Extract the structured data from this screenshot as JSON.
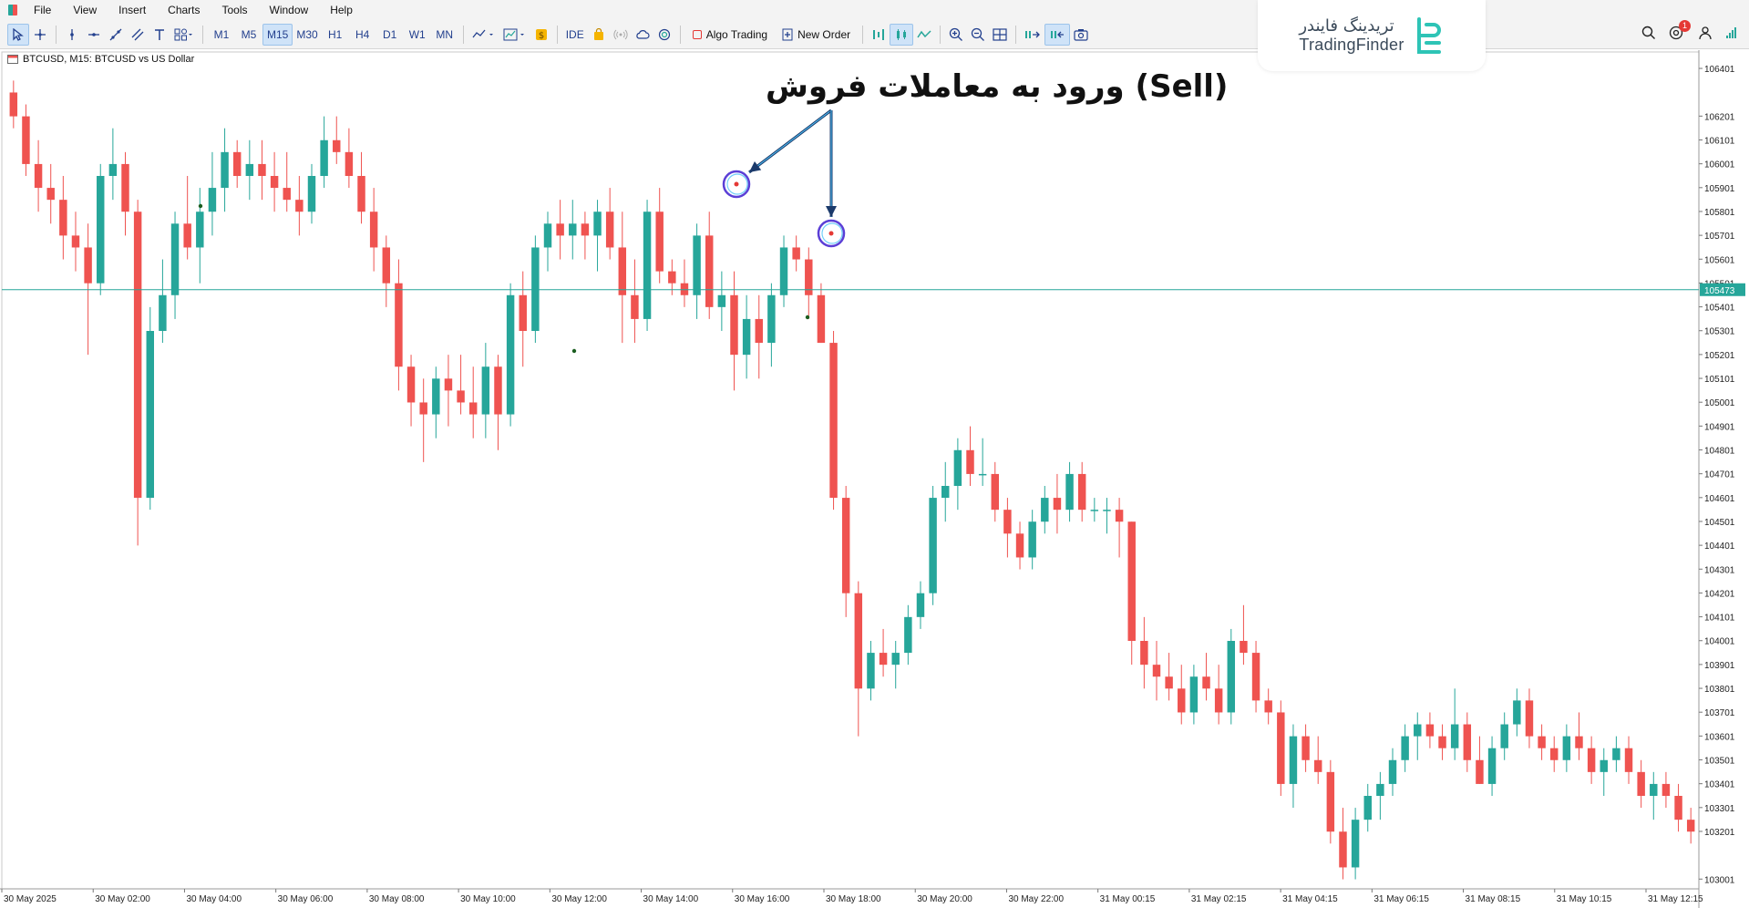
{
  "menu": [
    "File",
    "View",
    "Insert",
    "Charts",
    "Tools",
    "Window",
    "Help"
  ],
  "toolbar": {
    "timeframes": [
      "M1",
      "M5",
      "M15",
      "M30",
      "H1",
      "H4",
      "D1",
      "W1",
      "MN"
    ],
    "active_timeframe": "M15",
    "ide_label": "IDE",
    "algo_trading_label": "Algo Trading",
    "new_order_label": "New Order"
  },
  "notifications": {
    "count": "1"
  },
  "logo": {
    "fa": "تریدینگ فایندر",
    "en": "TradingFinder"
  },
  "chart": {
    "title": "BTCUSD, M15:  BTCUSD vs US Dollar",
    "annotation": "ورود به معاملات فروش (Sell)",
    "current_price_label": "105473",
    "price_ticks": [
      "106401",
      "106201",
      "106101",
      "106001",
      "105901",
      "105801",
      "105701",
      "105601",
      "105501",
      "105401",
      "105301",
      "105201",
      "105101",
      "105001",
      "104901",
      "104801",
      "104701",
      "104601",
      "104501",
      "104401",
      "104301",
      "104201",
      "104101",
      "104001",
      "103901",
      "103801",
      "103701",
      "103601",
      "103501",
      "103401",
      "103301",
      "103201",
      "103001"
    ],
    "time_ticks": [
      "30 May 2025",
      "30 May 02:00",
      "30 May 04:00",
      "30 May 06:00",
      "30 May 08:00",
      "30 May 10:00",
      "30 May 12:00",
      "30 May 14:00",
      "30 May 16:00",
      "30 May 18:00",
      "30 May 20:00",
      "30 May 22:00",
      "31 May 00:15",
      "31 May 02:15",
      "31 May 04:15",
      "31 May 06:15",
      "31 May 08:15",
      "31 May 10:15",
      "31 May 12:15"
    ],
    "colors": {
      "bull": "#26a69a",
      "bear": "#ef5350",
      "current_line": "#26a69a",
      "signal": "#e53935",
      "circle": "#5b3fd6"
    }
  },
  "chart_data": {
    "type": "candlestick",
    "symbol": "BTCUSD",
    "timeframe": "M15",
    "ylim": [
      102960,
      106470
    ],
    "current_price": 105473,
    "candles": [
      [
        106300,
        106350,
        106150,
        106200
      ],
      [
        106200,
        106250,
        105950,
        106000
      ],
      [
        106000,
        106100,
        105800,
        105900
      ],
      [
        105900,
        106000,
        105750,
        105850
      ],
      [
        105850,
        105950,
        105600,
        105700
      ],
      [
        105700,
        105800,
        105550,
        105650
      ],
      [
        105650,
        105750,
        105200,
        105500
      ],
      [
        105500,
        106000,
        105450,
        105950
      ],
      [
        105950,
        106150,
        105850,
        106000
      ],
      [
        106000,
        106050,
        105700,
        105800
      ],
      [
        105800,
        105850,
        104400,
        104600
      ],
      [
        104600,
        105400,
        104550,
        105300
      ],
      [
        105300,
        105600,
        105250,
        105450
      ],
      [
        105450,
        105800,
        105350,
        105750
      ],
      [
        105750,
        105950,
        105600,
        105650
      ],
      [
        105650,
        105900,
        105500,
        105800
      ],
      [
        105800,
        106050,
        105700,
        105900
      ],
      [
        105900,
        106150,
        105800,
        106050
      ],
      [
        106050,
        106100,
        105900,
        105950
      ],
      [
        105950,
        106100,
        105850,
        106000
      ],
      [
        106000,
        106100,
        105850,
        105950
      ],
      [
        105950,
        106050,
        105800,
        105900
      ],
      [
        105900,
        106050,
        105800,
        105850
      ],
      [
        105850,
        105950,
        105700,
        105800
      ],
      [
        105800,
        106000,
        105750,
        105950
      ],
      [
        105950,
        106200,
        105900,
        106100
      ],
      [
        106100,
        106200,
        106000,
        106050
      ],
      [
        106050,
        106150,
        105900,
        105950
      ],
      [
        105950,
        106050,
        105750,
        105800
      ],
      [
        105800,
        105900,
        105550,
        105650
      ],
      [
        105650,
        105700,
        105400,
        105500
      ],
      [
        105500,
        105600,
        105050,
        105150
      ],
      [
        105150,
        105200,
        104900,
        105000
      ],
      [
        105000,
        105100,
        104750,
        104950
      ],
      [
        104950,
        105150,
        104850,
        105100
      ],
      [
        105100,
        105200,
        104900,
        105050
      ],
      [
        105050,
        105200,
        104950,
        105000
      ],
      [
        105000,
        105150,
        104850,
        104950
      ],
      [
        104950,
        105250,
        104850,
        105150
      ],
      [
        105150,
        105200,
        104800,
        104950
      ],
      [
        104950,
        105500,
        104900,
        105450
      ],
      [
        105450,
        105550,
        105150,
        105300
      ],
      [
        105300,
        105700,
        105250,
        105650
      ],
      [
        105650,
        105800,
        105550,
        105750
      ],
      [
        105750,
        105850,
        105600,
        105700
      ],
      [
        105700,
        105850,
        105600,
        105750
      ],
      [
        105750,
        105800,
        105600,
        105700
      ],
      [
        105700,
        105850,
        105550,
        105800
      ],
      [
        105800,
        105900,
        105600,
        105650
      ],
      [
        105650,
        105800,
        105250,
        105450
      ],
      [
        105450,
        105600,
        105250,
        105350
      ],
      [
        105350,
        105850,
        105300,
        105800
      ],
      [
        105800,
        105900,
        105500,
        105550
      ],
      [
        105550,
        105600,
        105450,
        105500
      ],
      [
        105500,
        105600,
        105400,
        105450
      ],
      [
        105450,
        105750,
        105350,
        105700
      ],
      [
        105700,
        105800,
        105350,
        105400
      ],
      [
        105400,
        105550,
        105300,
        105450
      ],
      [
        105450,
        105550,
        105050,
        105200
      ],
      [
        105200,
        105450,
        105100,
        105350
      ],
      [
        105350,
        105450,
        105100,
        105250
      ],
      [
        105250,
        105500,
        105150,
        105450
      ],
      [
        105450,
        105700,
        105400,
        105650
      ],
      [
        105650,
        105700,
        105550,
        105600
      ],
      [
        105600,
        105650,
        105350,
        105450
      ],
      [
        105450,
        105500,
        105250,
        105250
      ],
      [
        105250,
        105300,
        104550,
        104600
      ],
      [
        104600,
        104650,
        104100,
        104200
      ],
      [
        104200,
        104250,
        103600,
        103800
      ],
      [
        103800,
        104000,
        103750,
        103950
      ],
      [
        103950,
        104050,
        103850,
        103900
      ],
      [
        103900,
        104000,
        103800,
        103950
      ],
      [
        103950,
        104150,
        103900,
        104100
      ],
      [
        104100,
        104250,
        104050,
        104200
      ],
      [
        104200,
        104650,
        104150,
        104600
      ],
      [
        104600,
        104750,
        104500,
        104650
      ],
      [
        104650,
        104850,
        104550,
        104800
      ],
      [
        104800,
        104900,
        104650,
        104700
      ],
      [
        104700,
        104850,
        104650,
        104700
      ],
      [
        104700,
        104750,
        104500,
        104550
      ],
      [
        104550,
        104600,
        104350,
        104450
      ],
      [
        104450,
        104500,
        104300,
        104350
      ],
      [
        104350,
        104550,
        104300,
        104500
      ],
      [
        104500,
        104650,
        104450,
        104600
      ],
      [
        104600,
        104700,
        104450,
        104550
      ],
      [
        104550,
        104750,
        104500,
        104700
      ],
      [
        104700,
        104750,
        104500,
        104550
      ],
      [
        104550,
        104600,
        104500,
        104550
      ],
      [
        104550,
        104600,
        104450,
        104550
      ],
      [
        104550,
        104600,
        104350,
        104500
      ],
      [
        104500,
        104500,
        103900,
        104000
      ],
      [
        104000,
        104100,
        103800,
        103900
      ],
      [
        103900,
        104000,
        103750,
        103850
      ],
      [
        103850,
        103950,
        103750,
        103800
      ],
      [
        103800,
        103900,
        103650,
        103700
      ],
      [
        103700,
        103900,
        103650,
        103850
      ],
      [
        103850,
        103950,
        103750,
        103800
      ],
      [
        103800,
        103900,
        103650,
        103700
      ],
      [
        103700,
        104050,
        103650,
        104000
      ],
      [
        104000,
        104150,
        103900,
        103950
      ],
      [
        103950,
        104000,
        103700,
        103750
      ],
      [
        103750,
        103800,
        103650,
        103700
      ],
      [
        103700,
        103750,
        103350,
        103400
      ],
      [
        103400,
        103650,
        103300,
        103600
      ],
      [
        103600,
        103650,
        103450,
        103500
      ],
      [
        103500,
        103600,
        103400,
        103450
      ],
      [
        103450,
        103500,
        103150,
        103200
      ],
      [
        103200,
        103300,
        103000,
        103050
      ],
      [
        103050,
        103300,
        103000,
        103250
      ],
      [
        103250,
        103400,
        103200,
        103350
      ],
      [
        103350,
        103450,
        103250,
        103400
      ],
      [
        103400,
        103550,
        103350,
        103500
      ],
      [
        103500,
        103650,
        103450,
        103600
      ],
      [
        103600,
        103700,
        103500,
        103650
      ],
      [
        103650,
        103700,
        103550,
        103600
      ],
      [
        103600,
        103650,
        103500,
        103550
      ],
      [
        103550,
        103800,
        103500,
        103650
      ],
      [
        103650,
        103700,
        103450,
        103500
      ],
      [
        103500,
        103600,
        103400,
        103400
      ],
      [
        103400,
        103600,
        103350,
        103550
      ],
      [
        103550,
        103700,
        103500,
        103650
      ],
      [
        103650,
        103800,
        103600,
        103750
      ],
      [
        103750,
        103800,
        103550,
        103600
      ],
      [
        103600,
        103650,
        103500,
        103550
      ],
      [
        103550,
        103600,
        103450,
        103500
      ],
      [
        103500,
        103650,
        103450,
        103600
      ],
      [
        103600,
        103700,
        103500,
        103550
      ],
      [
        103550,
        103600,
        103400,
        103450
      ],
      [
        103450,
        103550,
        103350,
        103500
      ],
      [
        103500,
        103600,
        103450,
        103550
      ],
      [
        103550,
        103600,
        103400,
        103450
      ],
      [
        103450,
        103500,
        103300,
        103350
      ],
      [
        103350,
        103450,
        103250,
        103400
      ],
      [
        103400,
        103450,
        103300,
        103350
      ],
      [
        103350,
        103400,
        103200,
        103250
      ],
      [
        103250,
        103300,
        103150,
        103200
      ]
    ]
  }
}
